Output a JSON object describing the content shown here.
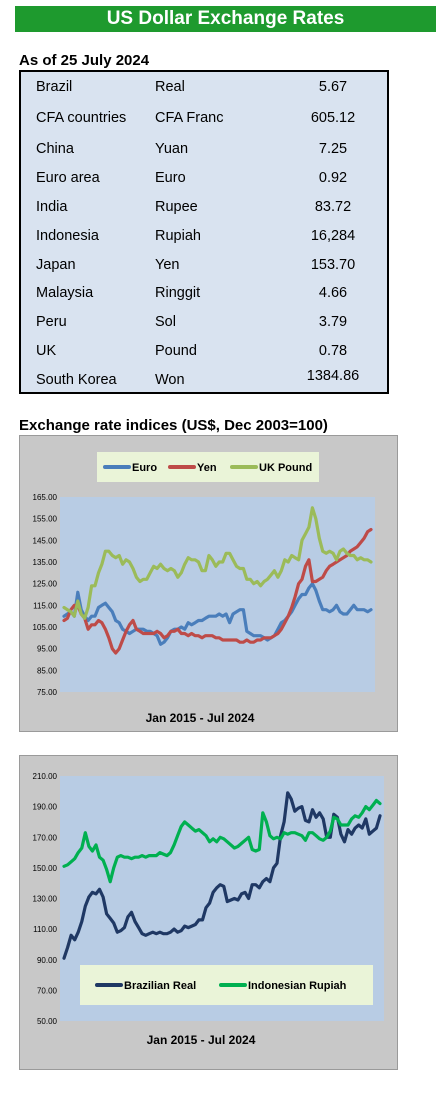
{
  "header": {
    "title": "US Dollar Exchange Rates"
  },
  "rates": {
    "as_of": "As of 25 July 2024",
    "rows": [
      {
        "country": "Brazil",
        "currency": "Real",
        "value": "5.67"
      },
      {
        "country": "CFA countries",
        "currency": "CFA Franc",
        "value": "605.12"
      },
      {
        "country": "China",
        "currency": "Yuan",
        "value": "7.25"
      },
      {
        "country": "Euro area",
        "currency": "Euro",
        "value": "0.92"
      },
      {
        "country": "India",
        "currency": "Rupee",
        "value": "83.72"
      },
      {
        "country": "Indonesia",
        "currency": "Rupiah",
        "value": "16,284"
      },
      {
        "country": "Japan",
        "currency": "Yen",
        "value": "153.70"
      },
      {
        "country": "Malaysia",
        "currency": "Ringgit",
        "value": "4.66"
      },
      {
        "country": "Peru",
        "currency": "Sol",
        "value": "3.79"
      },
      {
        "country": "UK",
        "currency": "Pound",
        "value": "0.78"
      },
      {
        "country": "South Korea",
        "currency": "Won",
        "value": "1384.86"
      }
    ]
  },
  "indices_title": "Exchange rate indices (US$, Dec 2003=100)",
  "chart_data": [
    {
      "type": "line",
      "xlabel": "Jan 2015 - Jul 2024",
      "ylim": [
        75,
        165
      ],
      "yticks": [
        "165.00",
        "155.00",
        "145.00",
        "135.00",
        "125.00",
        "115.00",
        "105.00",
        "95.00",
        "85.00",
        "75.00"
      ],
      "legend_position": "top",
      "grid": false,
      "x_start": "Jan 2015",
      "x_end": "Jul 2024",
      "series": [
        {
          "name": "Euro",
          "color": "#4a7ebb",
          "values": [
            110,
            111,
            112,
            110,
            121,
            113,
            110,
            108,
            110,
            110,
            114,
            115,
            116,
            114,
            112,
            108,
            107,
            104,
            103,
            102,
            103,
            104,
            104,
            104,
            103,
            103,
            102,
            101,
            97,
            98,
            100,
            103,
            104,
            104,
            105,
            104,
            107,
            106,
            107,
            108,
            108,
            109,
            110,
            110,
            110,
            111,
            110,
            111,
            107,
            111,
            112,
            113,
            113,
            103,
            102,
            101,
            101,
            101,
            100,
            99,
            100,
            101,
            104,
            107,
            108,
            110,
            112,
            115,
            118,
            120,
            120,
            123,
            125,
            122,
            117,
            113,
            113,
            112,
            113,
            115,
            112,
            111,
            111,
            113,
            115,
            113,
            113,
            113,
            112,
            113
          ]
        },
        {
          "name": "Yen",
          "color": "#be4b48",
          "values": [
            108,
            109,
            113,
            115,
            115,
            111,
            109,
            104,
            106,
            106,
            108,
            107,
            104,
            100,
            95,
            93,
            95,
            99,
            103,
            106,
            108,
            104,
            103,
            102,
            102,
            102,
            102,
            103,
            102,
            100,
            101,
            103,
            103,
            104,
            102,
            102,
            101,
            102,
            101,
            101,
            100,
            101,
            101,
            101,
            100,
            100,
            99,
            99,
            99,
            99,
            99,
            98,
            98,
            99,
            98,
            98,
            99,
            99,
            100,
            100,
            100,
            101,
            102,
            104,
            107,
            110,
            114,
            119,
            125,
            127,
            133,
            136,
            126,
            126,
            127,
            128,
            131,
            133,
            134,
            135,
            136,
            137,
            138,
            140,
            141,
            142,
            144,
            146,
            149,
            150
          ]
        },
        {
          "name": "UK Pound",
          "color": "#9bbb59",
          "values": [
            114,
            113,
            112,
            110,
            117,
            111,
            109,
            114,
            124,
            124,
            130,
            134,
            140,
            140,
            138,
            137,
            138,
            134,
            136,
            135,
            132,
            128,
            126,
            127,
            127,
            130,
            133,
            132,
            134,
            132,
            131,
            132,
            131,
            128,
            130,
            134,
            137,
            136,
            136,
            135,
            131,
            131,
            138,
            136,
            133,
            135,
            135,
            139,
            139,
            136,
            133,
            132,
            132,
            127,
            127,
            125,
            126,
            124,
            126,
            127,
            129,
            131,
            128,
            131,
            136,
            135,
            138,
            137,
            136,
            145,
            148,
            151,
            160,
            155,
            146,
            140,
            139,
            140,
            139,
            136,
            140,
            141,
            139,
            138,
            138,
            136,
            137,
            136,
            136,
            135
          ]
        }
      ]
    },
    {
      "type": "line",
      "xlabel": "Jan 2015 - Jul 2024",
      "ylim": [
        50,
        210
      ],
      "yticks": [
        "210.00",
        "190.00",
        "170.00",
        "150.00",
        "130.00",
        "110.00",
        "90.00",
        "70.00",
        "50.00"
      ],
      "legend_position": "bottom",
      "grid": false,
      "x_start": "Jan 2015",
      "x_end": "Jul 2024",
      "series": [
        {
          "name": "Brazilian Real",
          "color": "#1f3864",
          "values": [
            91,
            98,
            106,
            103,
            108,
            115,
            125,
            131,
            134,
            133,
            136,
            131,
            120,
            117,
            114,
            108,
            109,
            111,
            118,
            121,
            115,
            111,
            107,
            106,
            107,
            108,
            107,
            108,
            107,
            107,
            108,
            110,
            108,
            109,
            112,
            111,
            112,
            113,
            116,
            116,
            124,
            127,
            134,
            137,
            139,
            138,
            128,
            129,
            130,
            129,
            133,
            134,
            130,
            139,
            139,
            137,
            141,
            143,
            141,
            150,
            153,
            171,
            180,
            199,
            195,
            187,
            189,
            190,
            181,
            180,
            188,
            183,
            186,
            182,
            170,
            170,
            185,
            183,
            172,
            167,
            175,
            172,
            176,
            178,
            176,
            182,
            172,
            174,
            176,
            184
          ]
        },
        {
          "name": "Indonesian Rupiah",
          "color": "#00b050",
          "values": [
            151,
            152,
            154,
            156,
            160,
            163,
            173,
            164,
            161,
            165,
            157,
            155,
            149,
            141,
            150,
            157,
            158,
            157,
            157,
            156,
            157,
            157,
            158,
            157,
            158,
            158,
            158,
            160,
            159,
            158,
            160,
            165,
            171,
            177,
            180,
            178,
            176,
            174,
            175,
            173,
            171,
            167,
            169,
            167,
            170,
            169,
            167,
            165,
            163,
            164,
            166,
            168,
            170,
            162,
            161,
            162,
            186,
            180,
            171,
            169,
            170,
            169,
            173,
            172,
            173,
            173,
            172,
            171,
            168,
            173,
            173,
            171,
            169,
            168,
            170,
            174,
            183,
            182,
            178,
            178,
            178,
            182,
            184,
            183,
            186,
            190,
            188,
            191,
            194,
            192
          ]
        }
      ]
    }
  ]
}
